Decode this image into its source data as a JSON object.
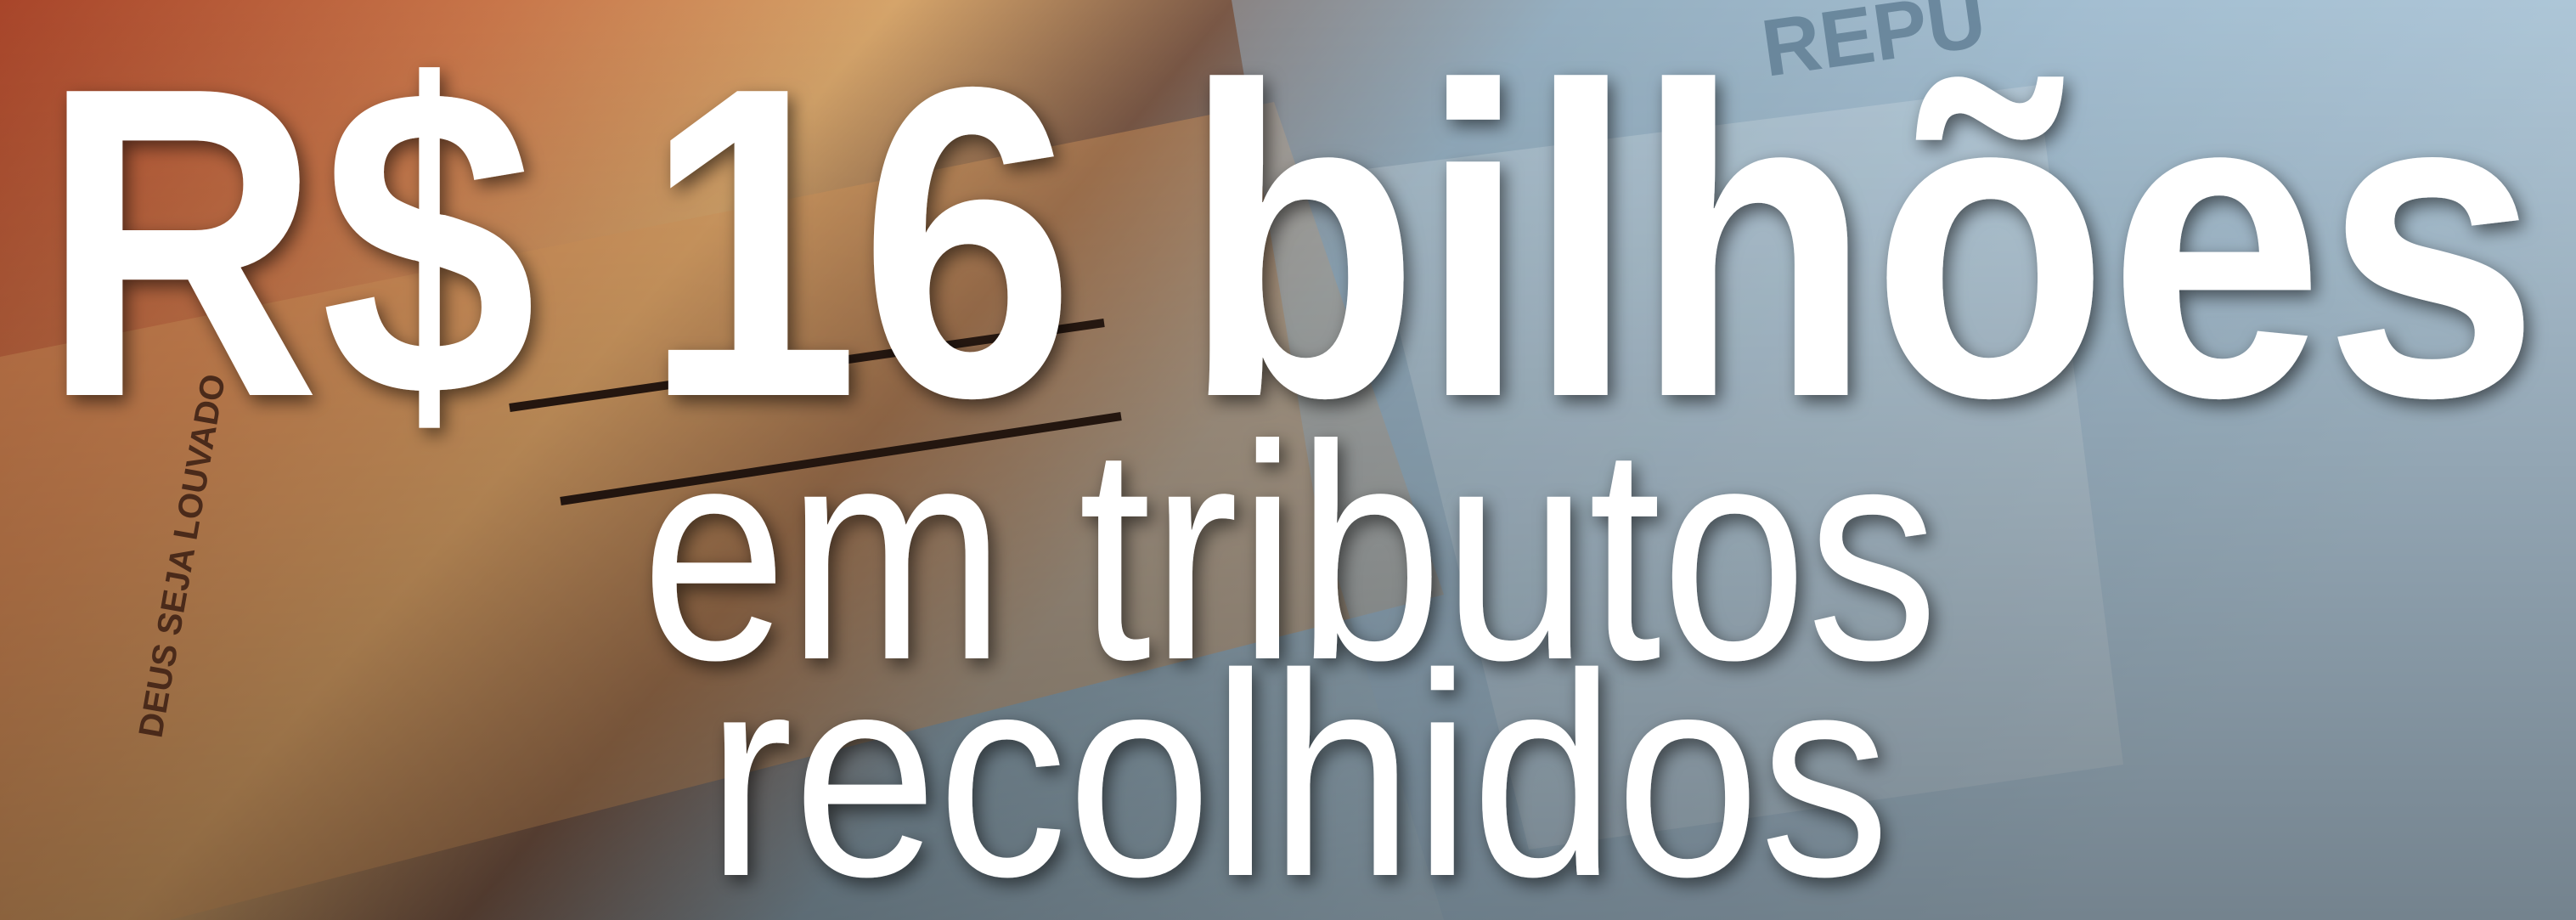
{
  "banner": {
    "headline": "R$ 16 bilhões",
    "line2": "em tributos",
    "line3": "recolhidos",
    "banknote_texts": [
      "DEUS SEJA LOUVADO",
      "REPU"
    ]
  }
}
